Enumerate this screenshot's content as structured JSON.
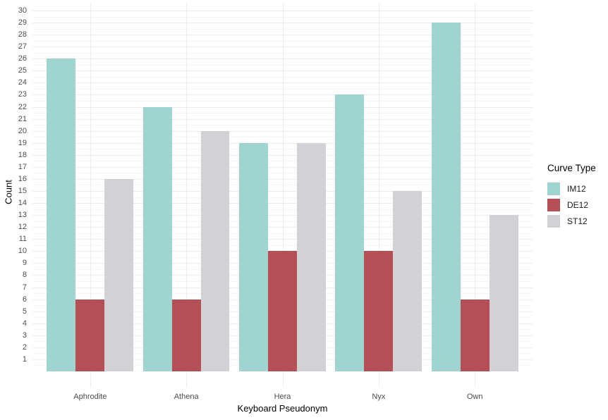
{
  "chart_data": {
    "type": "bar",
    "title": "",
    "xlabel": "Keyboard Pseudonym",
    "ylabel": "Count",
    "categories": [
      "Aphrodite",
      "Athena",
      "Hera",
      "Nyx",
      "Own"
    ],
    "series": [
      {
        "name": "IM12",
        "color": "#A0D4D1",
        "values": [
          26,
          22,
          19,
          23,
          29
        ]
      },
      {
        "name": "DE12",
        "color": "#B44F56",
        "values": [
          6,
          6,
          10,
          10,
          6
        ]
      },
      {
        "name": "ST12",
        "color": "#D1D1D6",
        "values": [
          16,
          20,
          19,
          15,
          13
        ]
      }
    ],
    "ylim": [
      0,
      30
    ],
    "y_ticks": [
      1,
      2,
      3,
      4,
      5,
      6,
      7,
      8,
      9,
      10,
      11,
      12,
      13,
      14,
      15,
      16,
      17,
      18,
      19,
      20,
      21,
      22,
      23,
      24,
      25,
      26,
      27,
      28,
      29,
      30
    ],
    "legend": {
      "title": "Curve Type",
      "position": "right"
    },
    "layout_hints": {
      "grid_major": true,
      "grid_minor": true,
      "bar_mode": "dodge",
      "background": "plain-white"
    },
    "colors": {
      "grid_major": "#EBEBEB",
      "grid_minor": "#F5F5F5",
      "tick_label": "#4D4D4D",
      "axis_title": "#000000",
      "background": "#FFFFFF"
    }
  }
}
